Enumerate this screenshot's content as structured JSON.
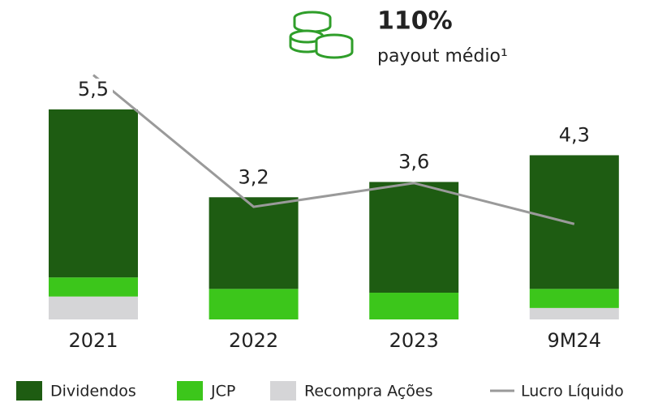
{
  "chart_data": {
    "type": "stacked-bar-line",
    "annotations": [
      "110%",
      "payout médio¹"
    ],
    "categories": [
      "2021",
      "2022",
      "2023",
      "9M24"
    ],
    "series": [
      {
        "name": "Recompra Ações",
        "color": "#d5d5d7",
        "values": [
          0.6,
          0,
          0,
          0.3
        ]
      },
      {
        "name": "JCP",
        "color": "#3cc61b",
        "values": [
          0.5,
          0.8,
          0.7,
          0.5
        ]
      },
      {
        "name": "Dividendos",
        "color": "#1e5c12",
        "values": [
          4.4,
          2.4,
          2.9,
          3.5
        ]
      }
    ],
    "totals": {
      "values": [
        5.5,
        3.2,
        3.6,
        4.3
      ],
      "value_labels": [
        "5,5",
        "3,2",
        "3,6",
        "4,3"
      ]
    },
    "line": {
      "name": "Lucro Líquido",
      "color": "#9a9a9a",
      "values": [
        6.4,
        2.95,
        3.57,
        2.5
      ]
    },
    "legend": [
      "Dividendos",
      "JCP",
      "Recompra Ações",
      "Lucro Líquido"
    ]
  }
}
